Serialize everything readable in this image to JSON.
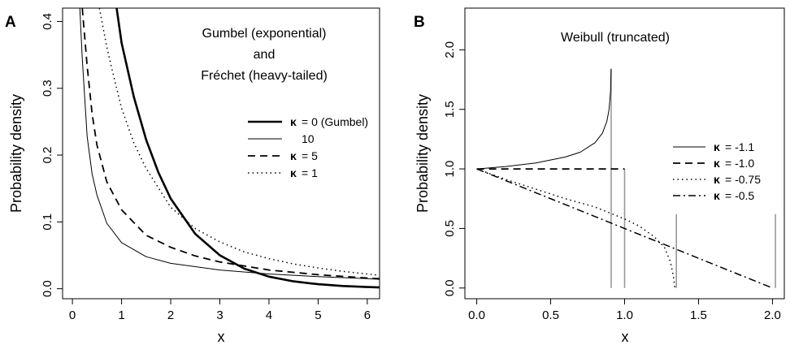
{
  "chart_data": [
    {
      "panel": "A",
      "type": "line",
      "xlabel": "x",
      "ylabel": "Probability density",
      "xlim": [
        -0.2,
        6.25
      ],
      "ylim": [
        -0.015,
        0.42
      ],
      "x_ticks": [
        "0",
        "1",
        "2",
        "3",
        "4",
        "5",
        "6"
      ],
      "y_ticks": [
        "0.0",
        "0.1",
        "0.2",
        "0.3",
        "0.4"
      ],
      "annotation": [
        "Gumbel (exponential)",
        "and",
        "Fréchet (heavy-tailed)"
      ],
      "legend_position": "right",
      "series": [
        {
          "legend_symbol": "κ",
          "legend_text": "= 0 (Gumbel)",
          "style": "thick-solid",
          "x": [
            0.9,
            1.0,
            1.25,
            1.5,
            1.75,
            2.0,
            2.5,
            3.0,
            3.5,
            4.0,
            4.5,
            5.0,
            5.5,
            6.0,
            6.25
          ],
          "y": [
            0.42,
            0.368,
            0.287,
            0.223,
            0.174,
            0.135,
            0.082,
            0.05,
            0.03,
            0.018,
            0.011,
            0.0067,
            0.0041,
            0.0025,
            0.0019
          ]
        },
        {
          "legend_symbol": "",
          "legend_text": "10",
          "style": "thin-solid",
          "x": [
            0.15,
            0.2,
            0.3,
            0.4,
            0.5,
            0.7,
            1.0,
            1.5,
            2.0,
            3.0,
            4.0,
            5.0,
            6.0,
            6.25
          ],
          "y": [
            0.42,
            0.345,
            0.228,
            0.172,
            0.14,
            0.098,
            0.069,
            0.048,
            0.038,
            0.028,
            0.022,
            0.018,
            0.015,
            0.014
          ]
        },
        {
          "legend_symbol": "κ",
          "legend_text": "= 5",
          "style": "dashed",
          "x": [
            0.2,
            0.3,
            0.4,
            0.5,
            0.7,
            1.0,
            1.5,
            2.0,
            2.5,
            3.0,
            4.0,
            5.0,
            6.0,
            6.25
          ],
          "y": [
            0.42,
            0.334,
            0.262,
            0.215,
            0.16,
            0.118,
            0.08,
            0.062,
            0.049,
            0.04,
            0.028,
            0.021,
            0.016,
            0.015
          ]
        },
        {
          "legend_symbol": "κ",
          "legend_text": "= 1",
          "style": "dotted",
          "x": [
            0.55,
            0.6,
            0.7,
            0.8,
            1.0,
            1.25,
            1.5,
            2.0,
            2.5,
            3.0,
            3.5,
            4.0,
            4.5,
            5.0,
            5.5,
            6.0,
            6.25
          ],
          "y": [
            0.42,
            0.4,
            0.362,
            0.33,
            0.27,
            0.218,
            0.18,
            0.122,
            0.09,
            0.07,
            0.055,
            0.045,
            0.037,
            0.031,
            0.026,
            0.022,
            0.02
          ]
        }
      ]
    },
    {
      "panel": "B",
      "type": "line",
      "xlabel": "x",
      "ylabel": "Probability density",
      "xlim": [
        -0.08,
        2.08
      ],
      "ylim": [
        -0.09,
        2.35
      ],
      "x_ticks": [
        "0.0",
        "0.5",
        "1.0",
        "1.5",
        "2.0"
      ],
      "y_ticks": [
        "0.0",
        "0.5",
        "1.0",
        "1.5",
        "2.0"
      ],
      "annotation": [
        "Weibull (truncated)"
      ],
      "legend_position": "right",
      "series": [
        {
          "legend_symbol": "κ",
          "legend_text": "= -1.1",
          "style": "thin-solid",
          "x": [
            0.0,
            0.2,
            0.4,
            0.6,
            0.7,
            0.8,
            0.85,
            0.88,
            0.895,
            0.905,
            0.909
          ],
          "y": [
            1.0,
            1.02,
            1.05,
            1.1,
            1.14,
            1.22,
            1.3,
            1.4,
            1.5,
            1.65,
            1.84
          ],
          "truncation_x": 0.909
        },
        {
          "legend_symbol": "κ",
          "legend_text": "= -1.0",
          "style": "dashed",
          "x": [
            0.0,
            1.0
          ],
          "y": [
            1.0,
            1.0
          ],
          "truncation_x": 1.0
        },
        {
          "legend_symbol": "κ",
          "legend_text": "= -0.75",
          "style": "dotted",
          "x": [
            0.0,
            0.2,
            0.4,
            0.6,
            0.8,
            1.0,
            1.1,
            1.2,
            1.27,
            1.31,
            1.33,
            1.34
          ],
          "y": [
            1.0,
            0.91,
            0.83,
            0.75,
            0.68,
            0.58,
            0.52,
            0.43,
            0.34,
            0.22,
            0.1,
            0.0
          ],
          "truncation_x": 1.35
        },
        {
          "legend_symbol": "κ",
          "legend_text": "= -0.5",
          "style": "dashdot",
          "x": [
            0.0,
            2.0
          ],
          "y": [
            1.0,
            0.0
          ],
          "truncation_x": 2.02
        }
      ],
      "truncation_line_color": "#999999"
    }
  ],
  "colors": {
    "series": "#000000",
    "truncation": "#999999"
  }
}
